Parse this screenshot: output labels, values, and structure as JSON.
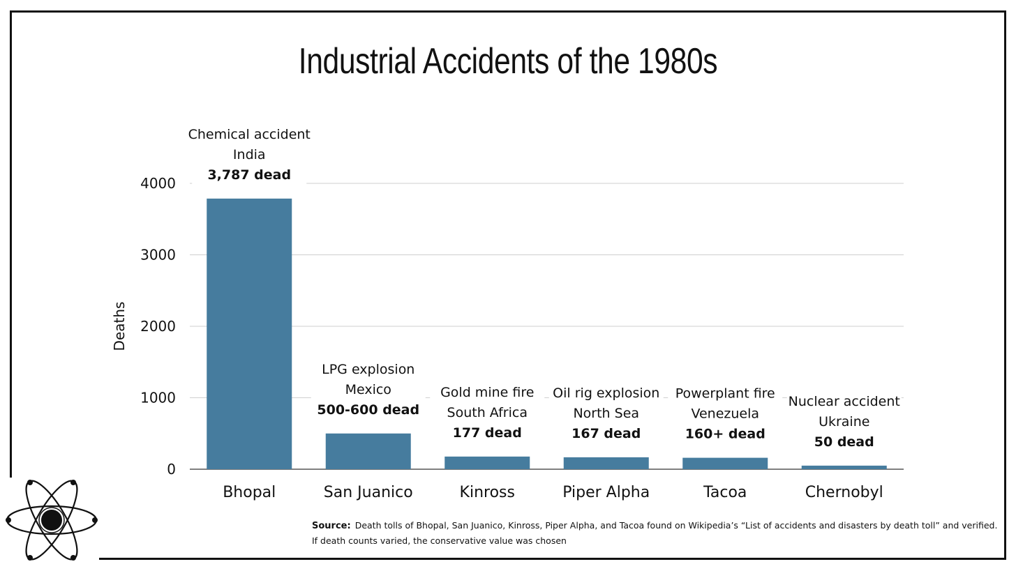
{
  "chart_data": {
    "type": "bar",
    "title": "Industrial Accidents of the 1980s",
    "ylabel": "Deaths",
    "xlabel": "",
    "ylim": [
      0,
      4000
    ],
    "yticks": [
      "0",
      "1000",
      "2000",
      "3000",
      "4000"
    ],
    "ytick_values": [
      0,
      1000,
      2000,
      3000,
      4000
    ],
    "grid": true,
    "categories": [
      "Bhopal",
      "San Juanico",
      "Kinross",
      "Piper Alpha",
      "Tacoa",
      "Chernobyl"
    ],
    "values": [
      3787,
      500,
      177,
      167,
      160,
      50
    ],
    "bar_color": "#467c9e",
    "annotations": [
      {
        "lines": [
          "Chemical accident",
          "India"
        ],
        "bold": "3,787 dead"
      },
      {
        "lines": [
          "LPG explosion",
          "Mexico"
        ],
        "bold": "500-600 dead"
      },
      {
        "lines": [
          "Gold mine fire",
          "South Africa"
        ],
        "bold": "177 dead"
      },
      {
        "lines": [
          "Oil rig explosion",
          "North Sea"
        ],
        "bold": "167 dead"
      },
      {
        "lines": [
          "Powerplant fire",
          "Venezuela"
        ],
        "bold": "160+ dead"
      },
      {
        "lines": [
          "Nuclear accident",
          "Ukraine"
        ],
        "bold": "50 dead"
      }
    ]
  },
  "source": {
    "label": "Source:",
    "line1": "Death tolls of Bhopal, San Juanico, Kinross, Piper Alpha, and Tacoa found on Wikipedia’s “List of accidents and disasters by death toll” and verified.",
    "line2": "If death counts varied, the conservative value was chosen"
  },
  "logo": {
    "icon": "atom-icon"
  }
}
